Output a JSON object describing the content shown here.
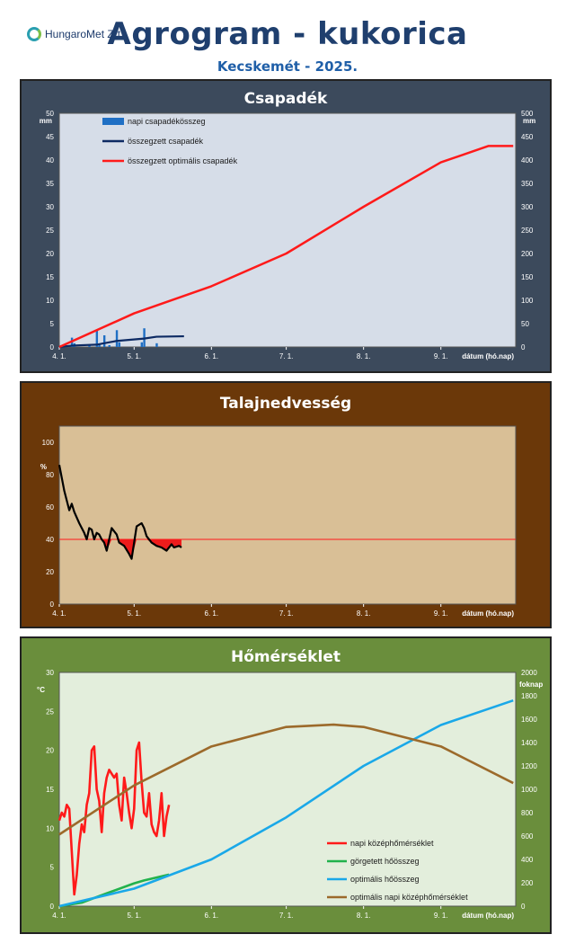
{
  "header": {
    "logo_text": "HungaroMet Zrt.",
    "title": "Agrogram - kukorica",
    "subtitle": "Kecskemét - 2025."
  },
  "chart_data": [
    {
      "type": "line",
      "title": "Csapadék",
      "xlabel": "dátum (hó.nap)",
      "ylabel_left": "mm",
      "ylabel_right": "mm",
      "x_range": [
        "4. 1.",
        "10. 1."
      ],
      "x_ticks": [
        "4. 1.",
        "5. 1.",
        "6. 1.",
        "7. 1.",
        "8. 1.",
        "9. 1."
      ],
      "ylim_left": [
        0,
        50
      ],
      "y_ticks_left": [
        0,
        5,
        10,
        15,
        20,
        25,
        30,
        35,
        40,
        45,
        50
      ],
      "ylim_right": [
        0,
        500
      ],
      "y_ticks_right": [
        0,
        50,
        100,
        150,
        200,
        250,
        300,
        350,
        400,
        450,
        500
      ],
      "grid": false,
      "legend_position": "top-left",
      "series": [
        {
          "name": "napi csapadékösszeg",
          "kind": "bar",
          "axis": "left",
          "color": "#1f6fc4",
          "x": [
            "4. 6.",
            "4. 7.",
            "4. 13.",
            "4. 16.",
            "4. 17.",
            "4. 19.",
            "4. 21.",
            "4. 24.",
            "4. 25.",
            "5. 4.",
            "5. 5.",
            "5. 10."
          ],
          "y": [
            2.0,
            0.8,
            0.5,
            3.6,
            0.5,
            2.5,
            0.4,
            3.6,
            1.0,
            1.0,
            4.0,
            0.8
          ]
        },
        {
          "name": "összegzett csapadék",
          "kind": "line",
          "axis": "right",
          "color": "#0d2a63",
          "x": [
            "4. 1.",
            "4. 6.",
            "4. 16.",
            "4. 19.",
            "4. 24.",
            "5. 5.",
            "5. 10.",
            "5. 21."
          ],
          "y": [
            0,
            3,
            5,
            8,
            13,
            18,
            22,
            23
          ]
        },
        {
          "name": "összegzett optimális csapadék",
          "kind": "line",
          "axis": "right",
          "color": "#ff1a1a",
          "x": [
            "4. 1.",
            "5. 1.",
            "6. 1.",
            "7. 1.",
            "8. 1.",
            "9. 1.",
            "9. 20.",
            "9. 30."
          ],
          "y": [
            0,
            72,
            130,
            200,
            300,
            395,
            430,
            430
          ]
        }
      ]
    },
    {
      "type": "line",
      "title": "Talajnedvesség",
      "xlabel": "dátum (hó.nap)",
      "ylabel": "%",
      "x_ticks": [
        "4. 1.",
        "5. 1.",
        "6. 1.",
        "7. 1.",
        "8. 1.",
        "9. 1."
      ],
      "ylim": [
        0,
        110
      ],
      "y_ticks": [
        0,
        20,
        40,
        60,
        80,
        100
      ],
      "threshold": 40,
      "threshold_color": "#ff1a1a",
      "deficit_fill_color": "#ee1c1c",
      "grid": false,
      "series": [
        {
          "name": "",
          "color": "#000000",
          "x": [
            "4. 1.",
            "4. 3.",
            "4. 5.",
            "4. 6.",
            "4. 7.",
            "4. 9.",
            "4. 11.",
            "4. 12.",
            "4. 13.",
            "4. 14.",
            "4. 15.",
            "4. 16.",
            "4. 17.",
            "4. 18.",
            "4. 19.",
            "4. 20.",
            "4. 22.",
            "4. 24.",
            "4. 25.",
            "4. 27.",
            "4. 29.",
            "4. 30.",
            "5. 2.",
            "5. 4.",
            "5. 5.",
            "5. 6.",
            "5. 8.",
            "5. 10.",
            "5. 12.",
            "5. 14.",
            "5. 16.",
            "5. 17.",
            "5. 19.",
            "5. 20."
          ],
          "y": [
            86,
            70,
            58,
            62,
            57,
            50,
            44,
            40,
            47,
            46,
            40,
            44,
            43,
            40,
            38,
            33,
            47,
            43,
            38,
            36,
            31,
            28,
            48,
            50,
            47,
            42,
            38,
            36,
            35,
            33,
            37,
            35,
            36,
            35
          ]
        }
      ]
    },
    {
      "type": "line",
      "title": "Hőmérséklet",
      "xlabel": "dátum (hó.nap)",
      "ylabel_left": "°C",
      "ylabel_right": "foknap",
      "x_ticks": [
        "4. 1.",
        "5. 1.",
        "6. 1.",
        "7. 1.",
        "8. 1.",
        "9. 1."
      ],
      "ylim_left": [
        0,
        30
      ],
      "y_ticks_left": [
        0,
        5,
        10,
        15,
        20,
        25,
        30
      ],
      "ylim_right": [
        0,
        2000
      ],
      "y_ticks_right": [
        0,
        200,
        400,
        600,
        800,
        1000,
        1200,
        1400,
        1600,
        1800,
        2000
      ],
      "grid": false,
      "legend_position": "bottom-right",
      "series": [
        {
          "name": "napi középhőmérséklet",
          "axis": "left",
          "color": "#ff1a1a",
          "x": [
            "4. 1.",
            "4. 2.",
            "4. 3.",
            "4. 4.",
            "4. 5.",
            "4. 6.",
            "4. 7.",
            "4. 8.",
            "4. 9.",
            "4. 10.",
            "4. 11.",
            "4. 12.",
            "4. 13.",
            "4. 14.",
            "4. 15.",
            "4. 16.",
            "4. 17.",
            "4. 18.",
            "4. 19.",
            "4. 20.",
            "4. 21.",
            "4. 22.",
            "4. 23.",
            "4. 24.",
            "4. 25.",
            "4. 26.",
            "4. 27.",
            "4. 28.",
            "4. 29.",
            "4. 30.",
            "5. 1.",
            "5. 2.",
            "5. 3.",
            "5. 4.",
            "5. 5.",
            "5. 6.",
            "5. 7.",
            "5. 8.",
            "5. 9.",
            "5. 10.",
            "5. 11.",
            "5. 12.",
            "5. 13.",
            "5. 14.",
            "5. 15."
          ],
          "y": [
            11.0,
            12.0,
            11.5,
            13.0,
            12.5,
            7.0,
            1.5,
            4.0,
            8.0,
            10.5,
            9.5,
            13.0,
            14.5,
            20.0,
            20.5,
            15.0,
            13.5,
            9.5,
            14.5,
            16.5,
            17.5,
            17.0,
            16.5,
            17.0,
            13.0,
            11.0,
            16.5,
            14.5,
            12.0,
            10.0,
            12.5,
            20.0,
            21.0,
            16.0,
            12.0,
            11.5,
            14.5,
            10.5,
            9.5,
            9.0,
            11.0,
            14.5,
            9.0,
            11.5,
            13.0
          ]
        },
        {
          "name": "görgetett hőösszeg",
          "axis": "right",
          "color": "#22b24c",
          "x": [
            "4. 1.",
            "4. 10.",
            "4. 20.",
            "5. 1.",
            "5. 5.",
            "5. 15."
          ],
          "y": [
            0,
            30,
            110,
            195,
            220,
            270
          ]
        },
        {
          "name": "optimális hőösszeg",
          "axis": "right",
          "color": "#1aa8e8",
          "x": [
            "4. 1.",
            "5. 1.",
            "6. 1.",
            "7. 1.",
            "8. 1.",
            "9. 1.",
            "9. 30."
          ],
          "y": [
            0,
            150,
            400,
            760,
            1200,
            1550,
            1760
          ]
        },
        {
          "name": "optimális napi középhőmérséklet",
          "axis": "left",
          "color": "#9c6a2b",
          "x": [
            "4. 1.",
            "5. 1.",
            "6. 1.",
            "7. 1.",
            "7. 20.",
            "8. 1.",
            "9. 1.",
            "9. 30."
          ],
          "y": [
            9.2,
            15.5,
            20.5,
            23.0,
            23.3,
            23.0,
            20.5,
            15.8
          ]
        }
      ]
    }
  ]
}
